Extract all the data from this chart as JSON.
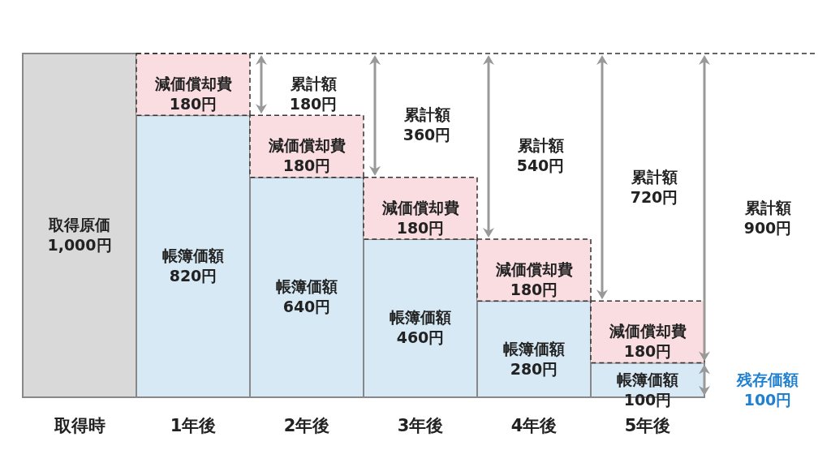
{
  "chart_data": {
    "type": "bar",
    "stacked": true,
    "categories": [
      "取得時",
      "1年後",
      "2年後",
      "3年後",
      "4年後",
      "5年後"
    ],
    "series": [
      {
        "color": "#d9d9d9",
        "values": [
          1000,
          null,
          null,
          null,
          null,
          null
        ],
        "value_labels": [
          "取得原価\n1,000円",
          null,
          null,
          null,
          null,
          null
        ]
      },
      {
        "color": "#d6e9f5",
        "values": [
          null,
          820,
          640,
          460,
          280,
          100
        ],
        "value_labels": [
          null,
          "帳簿価額\n820円",
          "帳簿価額\n640円",
          "帳簿価額\n460円",
          "帳簿価額\n280円",
          "帳簿価額\n100円"
        ]
      },
      {
        "color": "#fadde1",
        "line_style": "dashed",
        "values": [
          null,
          180,
          180,
          180,
          180,
          180
        ],
        "value_labels": [
          null,
          "減価償却費\n180円",
          "減価償却費\n180円",
          "減価償却費\n180円",
          "減価償却費\n180円",
          "減価償却費\n180円"
        ]
      }
    ],
    "ref_lines": [
      {
        "axis": "y",
        "value": 1000,
        "color": "#333333",
        "line_style": "dashed"
      }
    ],
    "annotations": [
      "累計額\n180円",
      "累計額\n360円",
      "累計額\n540円",
      "累計額\n720円",
      "累計額\n900円",
      "残存価額\n100円"
    ]
  }
}
